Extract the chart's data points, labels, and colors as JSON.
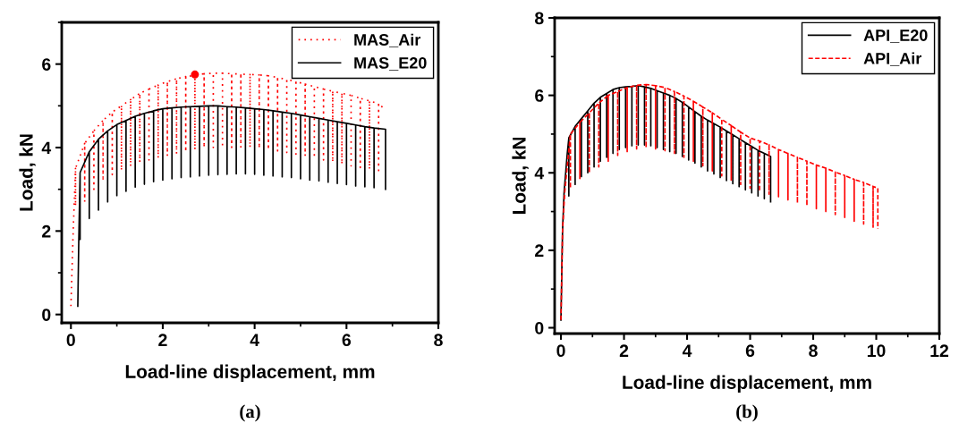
{
  "chart_data": [
    {
      "type": "line",
      "xlabel": "Load-line displacement, mm",
      "ylabel": "Load, kN",
      "xlim": [
        -0.2,
        8
      ],
      "ylim": [
        -0.2,
        7
      ],
      "xticks": [
        0,
        2,
        4,
        6,
        8
      ],
      "yticks": [
        0,
        2,
        4,
        6
      ],
      "grid": false,
      "legend": "top right",
      "annotations": [
        "(a)"
      ],
      "series": [
        {
          "name": "MAS_Air",
          "color": "#ff0000",
          "line_style": "dotted",
          "x": [
            0,
            0.05,
            0.1,
            0.1,
            0.1,
            0.3,
            0.3,
            0.3,
            0.5,
            0.5,
            0.5,
            0.7,
            0.7,
            0.7,
            0.9,
            0.9,
            0.9,
            1.1,
            1.1,
            1.1,
            1.3,
            1.3,
            1.3,
            1.5,
            1.5,
            1.5,
            1.7,
            1.7,
            1.7,
            1.9,
            1.9,
            1.9,
            2.1,
            2.1,
            2.1,
            2.3,
            2.3,
            2.3,
            2.5,
            2.5,
            2.5,
            2.7,
            2.7,
            2.7,
            2.9,
            2.9,
            2.9,
            3.1,
            3.1,
            3.1,
            3.3,
            3.3,
            3.3,
            3.5,
            3.5,
            3.5,
            3.7,
            3.7,
            3.7,
            3.9,
            3.9,
            3.9,
            4.1,
            4.1,
            4.1,
            4.3,
            4.3,
            4.3,
            4.5,
            4.5,
            4.5,
            4.7,
            4.7,
            4.7,
            4.9,
            4.9,
            4.9,
            5.1,
            5.1,
            5.1,
            5.3,
            5.3,
            5.3,
            5.5,
            5.5,
            5.5,
            5.7,
            5.7,
            5.7,
            5.9,
            5.9,
            5.9,
            6.1,
            6.1,
            6.1,
            6.3,
            6.3,
            6.3,
            6.5,
            6.5,
            6.5,
            6.7,
            6.7,
            6.7,
            6.8
          ],
          "values": [
            0.2,
            2.0,
            3.5,
            2.6,
            3.5,
            4.1,
            2.7,
            4.1,
            4.4,
            3.0,
            4.4,
            4.65,
            3.2,
            4.65,
            4.85,
            3.35,
            4.85,
            5.0,
            3.45,
            5.0,
            5.15,
            3.55,
            5.15,
            5.3,
            3.65,
            5.3,
            5.4,
            3.7,
            5.4,
            5.5,
            3.75,
            5.5,
            5.58,
            3.8,
            5.58,
            5.65,
            3.85,
            5.65,
            5.7,
            3.9,
            5.7,
            5.73,
            3.95,
            5.73,
            5.77,
            4.0,
            5.77,
            5.78,
            4.0,
            5.78,
            5.78,
            4.0,
            5.78,
            5.77,
            4.0,
            5.77,
            5.76,
            4.0,
            5.76,
            5.75,
            4.0,
            5.75,
            5.74,
            3.98,
            5.74,
            5.72,
            3.95,
            5.72,
            5.68,
            3.92,
            5.68,
            5.63,
            3.88,
            5.63,
            5.58,
            3.84,
            5.58,
            5.52,
            3.8,
            5.52,
            5.46,
            3.75,
            5.46,
            5.4,
            3.7,
            5.4,
            5.35,
            3.65,
            5.35,
            5.3,
            3.6,
            5.3,
            5.25,
            3.56,
            5.25,
            5.18,
            3.52,
            5.18,
            5.12,
            3.48,
            5.12,
            5.05,
            3.45,
            5.05,
            4.95
          ]
        },
        {
          "name": "MAS_E20",
          "color": "#000000",
          "line_style": "solid",
          "x": [
            0.15,
            0.17,
            0.2,
            0.2,
            0.2,
            0.4,
            0.4,
            0.4,
            0.6,
            0.6,
            0.6,
            0.8,
            0.8,
            0.8,
            1.0,
            1.0,
            1.0,
            1.2,
            1.2,
            1.2,
            1.4,
            1.4,
            1.4,
            1.6,
            1.6,
            1.6,
            1.8,
            1.8,
            1.8,
            2.0,
            2.0,
            2.0,
            2.2,
            2.2,
            2.2,
            2.4,
            2.4,
            2.4,
            2.6,
            2.6,
            2.6,
            2.8,
            2.8,
            2.8,
            3.0,
            3.0,
            3.0,
            3.2,
            3.2,
            3.2,
            3.4,
            3.4,
            3.4,
            3.6,
            3.6,
            3.6,
            3.8,
            3.8,
            3.8,
            4.0,
            4.0,
            4.0,
            4.2,
            4.2,
            4.2,
            4.4,
            4.4,
            4.4,
            4.6,
            4.6,
            4.6,
            4.8,
            4.8,
            4.8,
            5.0,
            5.0,
            5.0,
            5.2,
            5.2,
            5.2,
            5.4,
            5.4,
            5.4,
            5.6,
            5.6,
            5.6,
            5.8,
            5.8,
            5.8,
            6.0,
            6.0,
            6.0,
            6.2,
            6.2,
            6.2,
            6.4,
            6.4,
            6.4,
            6.6,
            6.6,
            6.6,
            6.85,
            6.85
          ],
          "values": [
            0.2,
            1.7,
            3.4,
            1.8,
            3.4,
            3.9,
            2.3,
            3.9,
            4.2,
            2.5,
            4.2,
            4.4,
            2.7,
            4.4,
            4.55,
            2.85,
            4.55,
            4.65,
            2.95,
            4.65,
            4.75,
            3.05,
            4.75,
            4.82,
            3.12,
            4.82,
            4.88,
            3.18,
            4.88,
            4.93,
            3.22,
            4.93,
            4.95,
            3.25,
            4.95,
            4.97,
            3.28,
            4.97,
            4.98,
            3.3,
            4.98,
            4.99,
            3.32,
            4.99,
            5.0,
            3.34,
            5.0,
            5.0,
            3.35,
            5.0,
            4.98,
            3.36,
            4.98,
            4.97,
            3.37,
            4.97,
            4.95,
            3.37,
            4.95,
            4.93,
            3.36,
            4.93,
            4.91,
            3.34,
            4.91,
            4.88,
            3.32,
            4.88,
            4.85,
            3.3,
            4.85,
            4.82,
            3.28,
            4.82,
            4.78,
            3.25,
            4.78,
            4.74,
            3.22,
            4.74,
            4.7,
            3.2,
            4.7,
            4.66,
            3.17,
            4.66,
            4.62,
            3.14,
            4.62,
            4.58,
            3.11,
            4.58,
            4.54,
            3.08,
            4.54,
            4.5,
            3.06,
            4.5,
            4.47,
            3.04,
            4.47,
            4.44,
            3.0
          ]
        },
        {
          "type": "scatter",
          "color": "#ff0000",
          "marker": "circle",
          "x": [
            2.7
          ],
          "values": [
            5.75
          ]
        }
      ]
    },
    {
      "type": "line",
      "xlabel": "Load-line displacement, mm",
      "ylabel": "Load, kN",
      "xlim": [
        -0.2,
        12
      ],
      "ylim": [
        -0.15,
        8
      ],
      "xticks": [
        0,
        2,
        4,
        6,
        8,
        10,
        12
      ],
      "yticks": [
        0,
        2,
        4,
        6,
        8
      ],
      "grid": false,
      "legend": "top right",
      "annotations": [
        "(b)"
      ],
      "series": [
        {
          "name": "API_E20",
          "color": "#000000",
          "line_style": "solid",
          "x": [
            0,
            0.05,
            0.1,
            0.2,
            0.25,
            0.25,
            0.25,
            0.45,
            0.45,
            0.45,
            0.65,
            0.65,
            0.65,
            0.85,
            0.85,
            0.85,
            1.05,
            1.05,
            1.05,
            1.25,
            1.25,
            1.25,
            1.45,
            1.45,
            1.45,
            1.65,
            1.65,
            1.65,
            1.85,
            1.85,
            1.85,
            2.05,
            2.05,
            2.05,
            2.25,
            2.25,
            2.25,
            2.45,
            2.45,
            2.45,
            2.65,
            2.65,
            2.65,
            2.85,
            2.85,
            2.85,
            3.05,
            3.05,
            3.05,
            3.25,
            3.25,
            3.25,
            3.45,
            3.45,
            3.45,
            3.65,
            3.65,
            3.65,
            3.85,
            3.85,
            3.85,
            4.05,
            4.05,
            4.05,
            4.25,
            4.25,
            4.25,
            4.45,
            4.45,
            4.45,
            4.65,
            4.65,
            4.65,
            4.85,
            4.85,
            4.85,
            5.05,
            5.05,
            5.05,
            5.25,
            5.25,
            5.25,
            5.45,
            5.45,
            5.45,
            5.65,
            5.65,
            5.65,
            5.85,
            5.85,
            5.85,
            6.05,
            6.05,
            6.05,
            6.25,
            6.25,
            6.25,
            6.45,
            6.45,
            6.45,
            6.65,
            6.65
          ],
          "values": [
            0.2,
            2.5,
            3.5,
            4.5,
            4.9,
            3.4,
            4.9,
            5.2,
            3.7,
            5.2,
            5.4,
            3.9,
            5.4,
            5.6,
            4.0,
            5.6,
            5.8,
            4.15,
            5.8,
            5.95,
            4.3,
            5.95,
            6.05,
            4.4,
            6.05,
            6.15,
            4.5,
            6.15,
            6.2,
            4.6,
            6.2,
            6.22,
            4.65,
            6.22,
            6.23,
            4.7,
            6.23,
            6.25,
            4.72,
            6.25,
            6.22,
            4.72,
            6.22,
            6.18,
            4.7,
            6.18,
            6.12,
            4.65,
            6.12,
            6.06,
            4.6,
            6.06,
            6.0,
            4.55,
            6.0,
            5.92,
            4.5,
            5.92,
            5.82,
            4.42,
            5.82,
            5.7,
            4.33,
            5.7,
            5.58,
            4.25,
            5.58,
            5.46,
            4.15,
            5.46,
            5.36,
            4.05,
            5.36,
            5.27,
            3.97,
            5.27,
            5.18,
            3.88,
            5.18,
            5.08,
            3.8,
            5.08,
            4.98,
            3.72,
            4.98,
            4.88,
            3.64,
            4.88,
            4.78,
            3.56,
            4.78,
            4.68,
            3.48,
            4.68,
            4.58,
            3.4,
            4.58,
            4.5,
            3.33,
            4.5,
            4.42,
            3.25
          ]
        },
        {
          "name": "API_Air",
          "color": "#ff0000",
          "line_style": "dashed",
          "x": [
            0,
            0.05,
            0.12,
            0.3,
            0.3,
            0.3,
            0.6,
            0.6,
            0.6,
            0.9,
            0.9,
            0.9,
            1.2,
            1.2,
            1.2,
            1.5,
            1.5,
            1.5,
            1.8,
            1.8,
            1.8,
            2.1,
            2.1,
            2.1,
            2.4,
            2.4,
            2.4,
            2.7,
            2.7,
            2.7,
            3.0,
            3.0,
            3.0,
            3.3,
            3.3,
            3.3,
            3.6,
            3.6,
            3.6,
            3.9,
            3.9,
            3.9,
            4.2,
            4.2,
            4.2,
            4.5,
            4.5,
            4.5,
            4.8,
            4.8,
            4.8,
            5.1,
            5.1,
            5.1,
            5.4,
            5.4,
            5.4,
            5.7,
            5.7,
            5.7,
            6.0,
            6.0,
            6.0,
            6.3,
            6.3,
            6.3,
            6.6,
            6.6,
            6.6,
            6.9,
            6.9,
            6.9,
            7.2,
            7.2,
            7.2,
            7.5,
            7.5,
            7.5,
            7.8,
            7.8,
            7.8,
            8.1,
            8.1,
            8.1,
            8.4,
            8.4,
            8.4,
            8.7,
            8.7,
            8.7,
            9.0,
            9.0,
            9.0,
            9.3,
            9.3,
            9.3,
            9.6,
            9.6,
            9.6,
            9.9,
            9.9,
            9.9,
            10.05,
            10.05
          ],
          "values": [
            0.2,
            2.5,
            3.5,
            5.0,
            3.6,
            5.0,
            5.3,
            3.85,
            5.3,
            5.55,
            4.0,
            5.55,
            5.8,
            4.15,
            5.8,
            6.0,
            4.3,
            6.0,
            6.1,
            4.45,
            6.1,
            6.2,
            4.55,
            6.2,
            6.26,
            4.62,
            6.26,
            6.28,
            4.65,
            6.28,
            6.25,
            4.62,
            6.25,
            6.2,
            4.57,
            6.2,
            6.1,
            4.5,
            6.1,
            5.98,
            4.4,
            5.98,
            5.85,
            4.3,
            5.85,
            5.7,
            4.18,
            5.7,
            5.55,
            4.05,
            5.55,
            5.38,
            3.92,
            5.38,
            5.22,
            3.8,
            5.22,
            5.05,
            3.7,
            5.05,
            4.9,
            3.6,
            4.9,
            4.82,
            3.52,
            4.82,
            4.72,
            3.45,
            4.72,
            4.6,
            3.38,
            4.6,
            4.5,
            3.3,
            4.5,
            4.4,
            3.22,
            4.4,
            4.3,
            3.15,
            4.3,
            4.2,
            3.07,
            4.2,
            4.12,
            3.0,
            4.12,
            4.02,
            2.92,
            4.02,
            3.93,
            2.85,
            3.93,
            3.83,
            2.75,
            3.83,
            3.75,
            2.68,
            3.75,
            3.65,
            2.6,
            3.65,
            3.6,
            2.55
          ]
        }
      ]
    }
  ]
}
